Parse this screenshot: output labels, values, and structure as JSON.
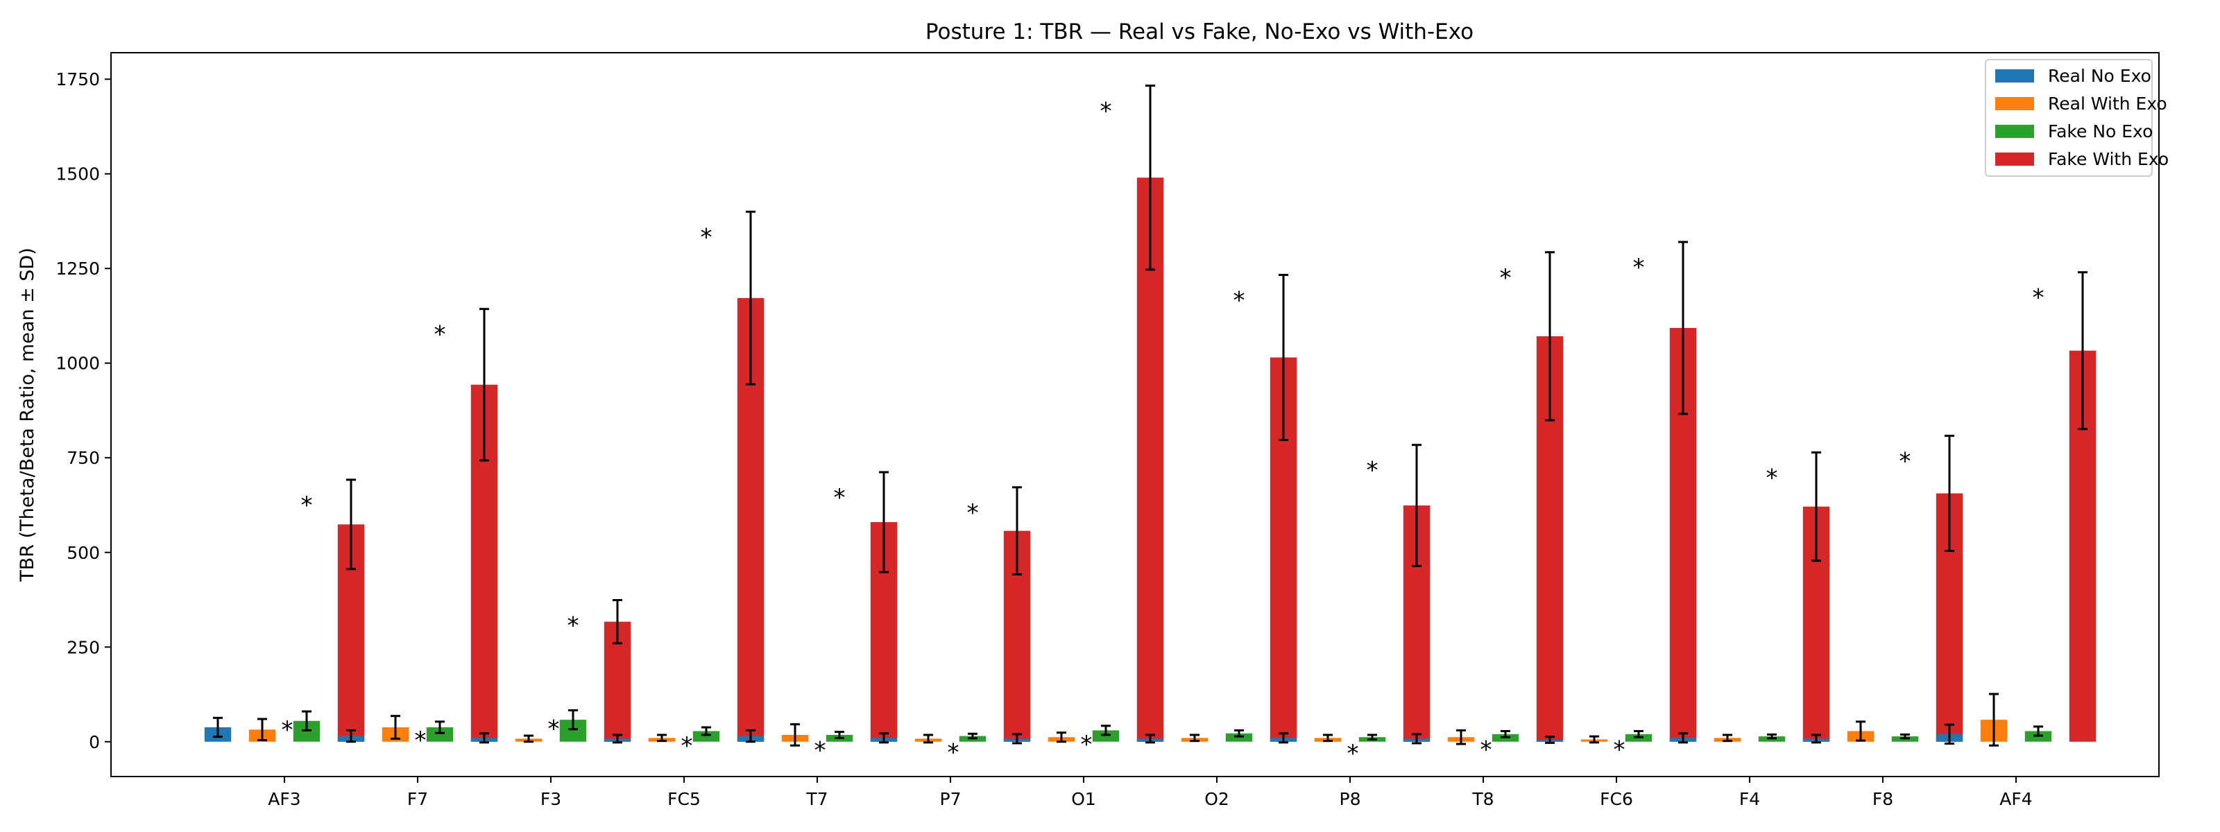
{
  "chart_data": {
    "type": "bar",
    "title": "Posture 1: TBR — Real vs Fake, No-Exo vs With-Exo",
    "xlabel": "",
    "ylabel": "TBR (Theta/Beta Ratio, mean ± SD)",
    "ylim": [
      -92,
      1820
    ],
    "yticks": [
      0,
      250,
      500,
      750,
      1000,
      1250,
      1500,
      1750
    ],
    "categories": [
      "AF3",
      "F7",
      "F3",
      "FC5",
      "T7",
      "P7",
      "O1",
      "O2",
      "P8",
      "T8",
      "FC6",
      "F4",
      "F8",
      "AF4"
    ],
    "legend_position": "upper right",
    "grid": false,
    "significance_marker": "*",
    "series": [
      {
        "name": "Real No Exo",
        "color": "#1f77b4",
        "values": [
          38,
          15,
          10,
          8,
          15,
          10,
          8,
          8,
          10,
          8,
          5,
          10,
          8,
          20
        ],
        "errors": [
          25,
          15,
          12,
          10,
          15,
          12,
          12,
          10,
          12,
          12,
          8,
          12,
          10,
          25
        ]
      },
      {
        "name": "Real With Exo",
        "color": "#ff7f0e",
        "values": [
          32,
          38,
          8,
          10,
          18,
          8,
          12,
          10,
          10,
          12,
          6,
          10,
          28,
          58
        ],
        "errors": [
          28,
          30,
          8,
          8,
          28,
          10,
          12,
          8,
          8,
          18,
          8,
          8,
          25,
          68
        ]
      },
      {
        "name": "Fake No Exo",
        "color": "#2ca02c",
        "values": [
          55,
          38,
          58,
          28,
          18,
          15,
          30,
          22,
          12,
          20,
          20,
          14,
          14,
          28
        ],
        "errors": [
          25,
          15,
          25,
          10,
          8,
          6,
          12,
          8,
          6,
          8,
          8,
          5,
          5,
          12
        ]
      },
      {
        "name": "Fake With Exo",
        "color": "#d62728",
        "values": [
          574,
          943,
          317,
          1172,
          580,
          557,
          1490,
          1015,
          624,
          1071,
          1093,
          621,
          656,
          1033
        ],
        "errors": [
          118,
          200,
          57,
          228,
          132,
          115,
          243,
          218,
          160,
          222,
          227,
          143,
          152,
          207
        ]
      }
    ],
    "annotations": [
      {
        "category": "AF3",
        "between": "Real No Exo/Fake No Exo",
        "text": "*"
      },
      {
        "category": "AF3",
        "between": "Fake With Exo",
        "text": "*"
      },
      {
        "category": "F7",
        "between": "Real No Exo/Fake No Exo",
        "text": "*"
      },
      {
        "category": "F7",
        "between": "Fake With Exo",
        "text": "*"
      },
      {
        "category": "F3",
        "between": "Real No Exo/Fake No Exo",
        "text": "*"
      },
      {
        "category": "F3",
        "between": "Fake With Exo",
        "text": "*"
      },
      {
        "category": "FC5",
        "between": "Real No Exo/Fake No Exo",
        "text": "*"
      },
      {
        "category": "FC5",
        "between": "Fake With Exo",
        "text": "*"
      },
      {
        "category": "T7",
        "between": "Real No Exo/Fake No Exo",
        "text": "*"
      },
      {
        "category": "T7",
        "between": "Fake With Exo",
        "text": "*"
      },
      {
        "category": "P7",
        "between": "Real No Exo/Fake No Exo",
        "text": "*"
      },
      {
        "category": "P7",
        "between": "Fake With Exo",
        "text": "*"
      },
      {
        "category": "O1",
        "between": "Real No Exo/Fake No Exo",
        "text": "*"
      },
      {
        "category": "O1",
        "between": "Fake With Exo",
        "text": "*"
      },
      {
        "category": "O2",
        "between": "Fake With Exo",
        "text": "*"
      },
      {
        "category": "P8",
        "between": "Real No Exo/Fake No Exo",
        "text": "*"
      },
      {
        "category": "P8",
        "between": "Fake With Exo",
        "text": "*"
      },
      {
        "category": "T8",
        "between": "Real No Exo/Fake No Exo",
        "text": "*"
      },
      {
        "category": "T8",
        "between": "Fake With Exo",
        "text": "*"
      },
      {
        "category": "FC6",
        "between": "Real No Exo/Fake No Exo",
        "text": "*"
      },
      {
        "category": "FC6",
        "between": "Fake With Exo",
        "text": "*"
      },
      {
        "category": "F4",
        "between": "Fake With Exo",
        "text": "*"
      },
      {
        "category": "F8",
        "between": "Fake With Exo",
        "text": "*"
      },
      {
        "category": "AF4",
        "between": "Fake With Exo",
        "text": "*"
      }
    ]
  }
}
